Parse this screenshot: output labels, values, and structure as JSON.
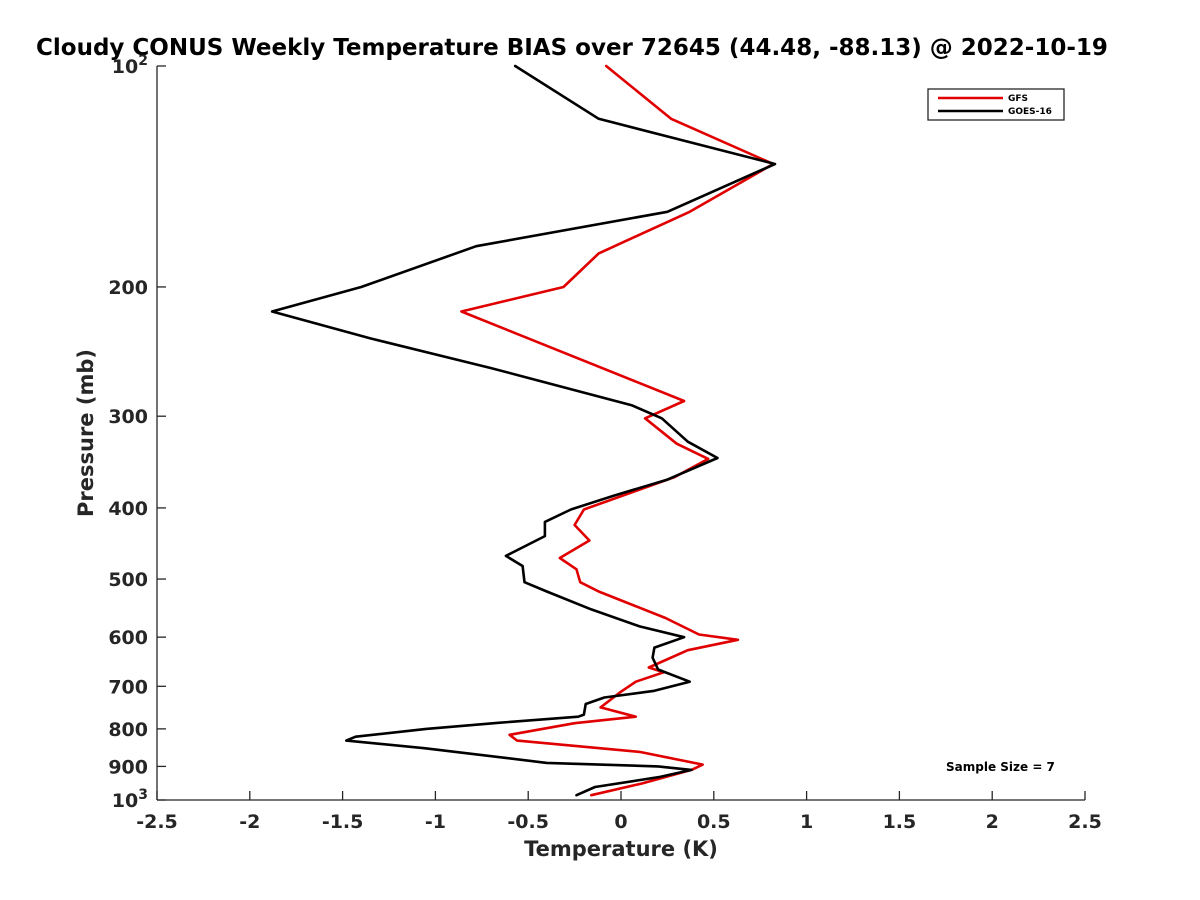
{
  "chart_data": {
    "type": "line",
    "title": "Cloudy CONUS Weekly Temperature BIAS over 72645 (44.48, -88.13) @ 2022-10-19",
    "xlabel": "Temperature (K)",
    "ylabel": "Pressure (mb)",
    "xlim": [
      -2.5,
      2.5
    ],
    "ylim": [
      100,
      1000
    ],
    "y_scale": "log",
    "y_reversed": true,
    "grid": false,
    "x_ticks": [
      "-2.5",
      "-2",
      "-1.5",
      "-1",
      "-0.5",
      "0",
      "0.5",
      "1",
      "1.5",
      "2",
      "2.5"
    ],
    "y_ticks": [
      {
        "value": 100,
        "base": "10",
        "exp": "2"
      },
      {
        "value": 200,
        "label": "200"
      },
      {
        "value": 300,
        "label": "300"
      },
      {
        "value": 400,
        "label": "400"
      },
      {
        "value": 500,
        "label": "500"
      },
      {
        "value": 600,
        "label": "600"
      },
      {
        "value": 700,
        "label": "700"
      },
      {
        "value": 800,
        "label": "800"
      },
      {
        "value": 900,
        "label": "900"
      },
      {
        "value": 1000,
        "base": "10",
        "exp": "3"
      }
    ],
    "legend_position": "top-right",
    "annotation": "Sample Size = 7",
    "series": [
      {
        "name": "GFS",
        "color": "#e00000",
        "x": [
          -0.08,
          0.27,
          0.82,
          0.37,
          -0.12,
          -0.31,
          -0.86,
          0.34,
          0.13,
          0.3,
          0.47,
          0.29,
          -0.2,
          -0.25,
          -0.17,
          -0.33,
          -0.24,
          -0.22,
          -0.12,
          0.24,
          0.42,
          0.63,
          0.36,
          0.15,
          0.23,
          0.08,
          0.0,
          -0.11,
          0.08,
          -0.25,
          -0.6,
          -0.56,
          0.1,
          0.44,
          0.38,
          0.11,
          -0.16
        ],
        "y": [
          100,
          118,
          136,
          158,
          180,
          200,
          216,
          286,
          302,
          327,
          343,
          363,
          402,
          422,
          443,
          468,
          485,
          505,
          520,
          565,
          595,
          605,
          625,
          660,
          670,
          690,
          712,
          748,
          770,
          786,
          815,
          830,
          860,
          895,
          910,
          950,
          985
        ]
      },
      {
        "name": "GOES-16",
        "color": "#000000",
        "x": [
          -0.57,
          -0.12,
          0.83,
          0.25,
          -0.78,
          -1.4,
          -1.88,
          -1.35,
          -0.7,
          0.06,
          0.22,
          0.36,
          0.52,
          0.25,
          -0.04,
          -0.27,
          -0.41,
          -0.41,
          -0.62,
          -0.53,
          -0.52,
          -0.4,
          -0.16,
          0.1,
          0.34,
          0.18,
          0.17,
          0.2,
          0.37,
          0.18,
          -0.09,
          -0.19,
          -0.2,
          -0.23,
          -0.66,
          -1.05,
          -1.43,
          -1.48,
          -1.06,
          -0.4,
          0.2,
          0.38,
          0.21,
          -0.14,
          -0.24
        ],
        "y": [
          100,
          118,
          136,
          158,
          176,
          200,
          216,
          235,
          258,
          290,
          302,
          325,
          342,
          366,
          385,
          402,
          418,
          437,
          465,
          480,
          505,
          520,
          550,
          580,
          600,
          620,
          640,
          664,
          690,
          710,
          725,
          740,
          765,
          770,
          785,
          800,
          820,
          830,
          850,
          890,
          900,
          910,
          930,
          960,
          985
        ]
      }
    ]
  }
}
